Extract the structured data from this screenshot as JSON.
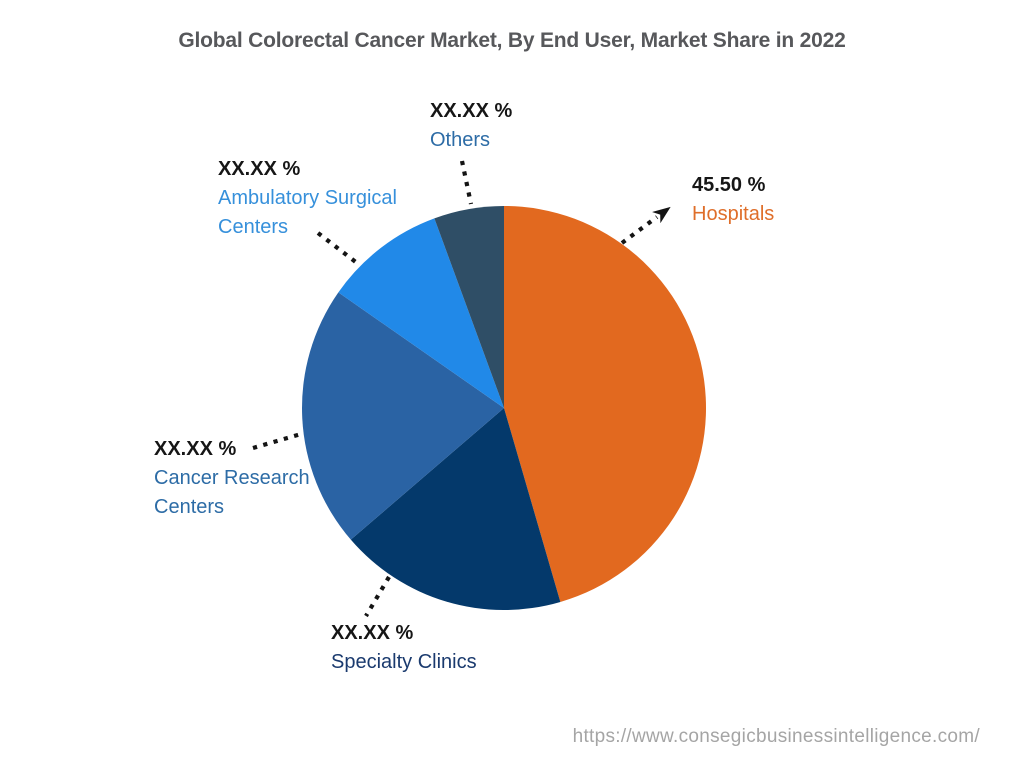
{
  "page": {
    "title": "Global Colorectal Cancer Market, By End User, Market Share in 2022",
    "source_url": "https://www.consegicbusinessintelligence.com/",
    "background_color": "#FFFFFF",
    "title_color": "#57585B",
    "url_color": "#A5A5A5",
    "value_text_color": "#161616",
    "leader_line_color": "#141414"
  },
  "chart_data": {
    "type": "pie",
    "title": "Global Colorectal Cancer Market, By End User, Market Share in 2022",
    "start_angle_deg": 0,
    "direction": "clockwise",
    "legend_position": "callout-labels",
    "slices": [
      {
        "label": "Hospitals",
        "value_label": "45.50 %",
        "percent": 45.5,
        "color": "#E2691F",
        "label_color": "#DF6E2A"
      },
      {
        "label": "Specialty Clinics",
        "value_label": "XX.XX %",
        "percent": 18.2,
        "color": "#04396B",
        "label_color": "#1A3A6E"
      },
      {
        "label": "Cancer Research Centers",
        "value_label": "XX.XX %",
        "percent": 21.0,
        "color": "#2A63A4",
        "label_color": "#2D6CA6"
      },
      {
        "label": "Ambulatory Surgical Centers",
        "value_label": "XX.XX %",
        "percent": 9.7,
        "color": "#2189E8",
        "label_color": "#3690DB"
      },
      {
        "label": "Others",
        "value_label": "XX.XX %",
        "percent": 5.6,
        "color": "#2F4E66",
        "label_color": "#2D6CA6"
      }
    ]
  }
}
